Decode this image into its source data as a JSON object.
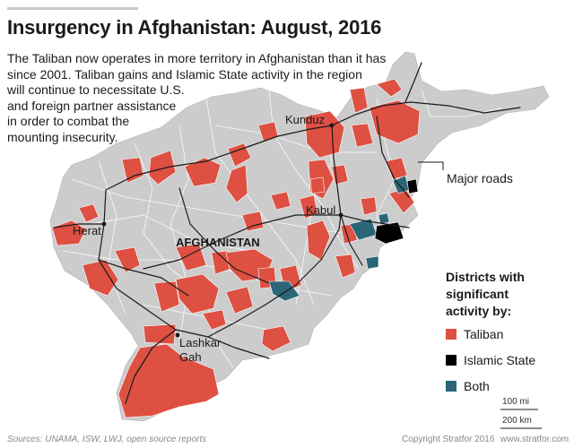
{
  "title": "Insurgency in Afghanistan: August, 2016",
  "description_lines": [
    "The Taliban now operates in more territory in Afghanistan than it has",
    "since 2001. Taliban gains and Islamic State activity in the region",
    "will continue to necessitate U.S.",
    "and foreign partner assistance",
    "in order to combat the",
    "mounting insecurity."
  ],
  "country_label": "AFGHANISTAN",
  "cities": {
    "kunduz": "Kunduz",
    "kabul": "Kabul",
    "herat": "Herat",
    "lashkar_gah_1": "Lashkar",
    "lashkar_gah_2": "Gah"
  },
  "roads_label": "Major roads",
  "legend": {
    "title_lines": [
      "Districts with",
      "significant",
      "activity by:"
    ],
    "items": [
      {
        "label": "Taliban",
        "color": "#dd5042"
      },
      {
        "label": "Islamic State",
        "color": "#000000"
      },
      {
        "label": "Both",
        "color": "#2a6676"
      }
    ]
  },
  "scale": {
    "miles": "100 mi",
    "km": "200 km"
  },
  "footer": {
    "sources": "Sources: UNAMA, ISW, LWJ, open source reports",
    "copyright": "Copyright Stratfor 2016",
    "url": "www.stratfor.com"
  },
  "colors": {
    "land": "#cccccc",
    "taliban": "#dd5042",
    "islamic_state": "#000000",
    "both": "#2a6676",
    "road": "#1a1a1a",
    "border": "#ffffff"
  }
}
